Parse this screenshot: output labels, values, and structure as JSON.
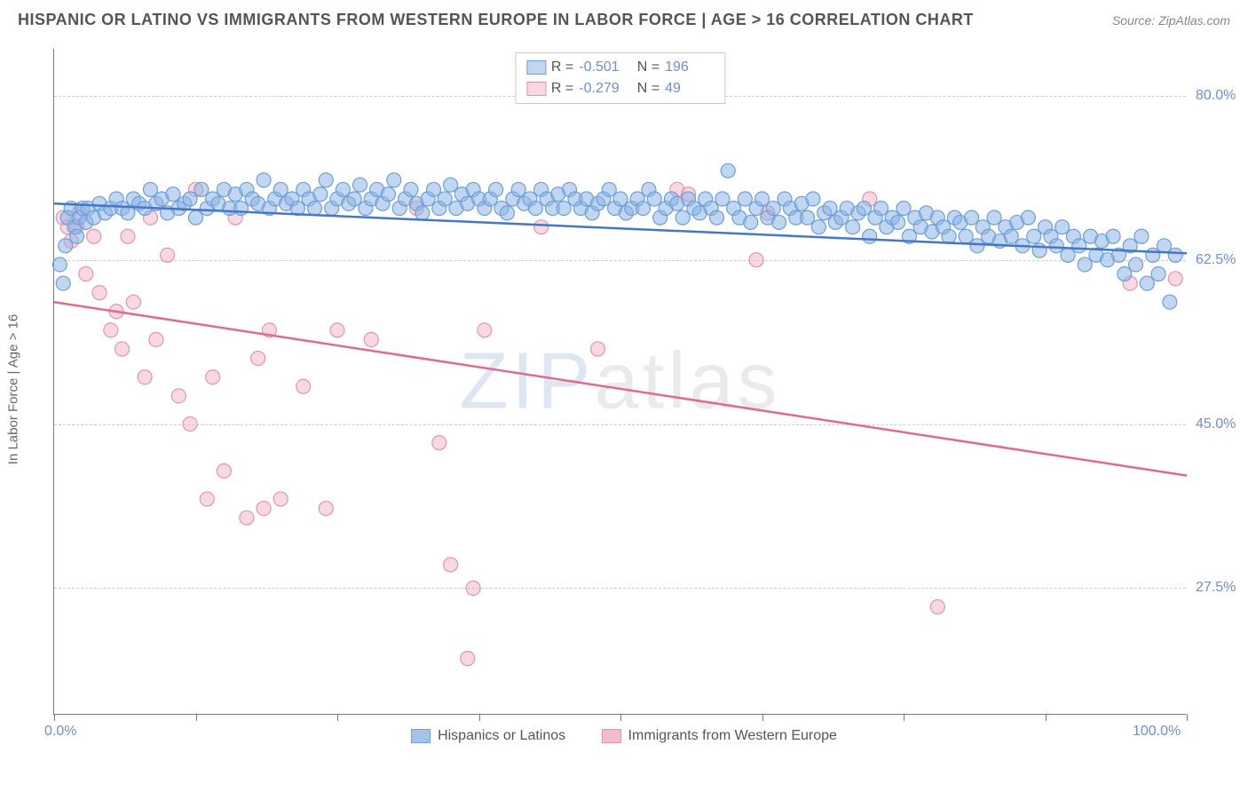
{
  "title": "HISPANIC OR LATINO VS IMMIGRANTS FROM WESTERN EUROPE IN LABOR FORCE | AGE > 16 CORRELATION CHART",
  "source": "Source: ZipAtlas.com",
  "ylabel": "In Labor Force | Age > 16",
  "watermark_front": "ZIP",
  "watermark_rest": "atlas",
  "chart": {
    "type": "scatter",
    "xlim": [
      0,
      100
    ],
    "ylim": [
      14,
      85
    ],
    "x_ticks": [
      0,
      12.5,
      25,
      37.5,
      50,
      62.5,
      75,
      87.5,
      100
    ],
    "x_tick_labels": {
      "0": "0.0%",
      "100": "100.0%"
    },
    "y_ticks": [
      27.5,
      45.0,
      62.5,
      80.0
    ],
    "y_tick_labels": [
      "27.5%",
      "45.0%",
      "62.5%",
      "80.0%"
    ],
    "grid_color": "#cccccc",
    "axis_color": "#777777",
    "background": "#ffffff",
    "marker_radius": 8,
    "marker_stroke_width": 1.2,
    "line_width": 2.5,
    "tick_label_color": "#6b8fd4",
    "title_color": "#555555",
    "title_fontsize": 18,
    "label_fontsize": 15
  },
  "series": [
    {
      "name": "Hispanics or Latinos",
      "fill": "rgba(140,180,230,0.55)",
      "stroke": "#6d9fd8",
      "line_color": "#4577c7",
      "R": "-0.501",
      "N": "196",
      "trend": {
        "x1": 0,
        "y1": 68.5,
        "x2": 100,
        "y2": 63.2
      },
      "points": [
        [
          0.5,
          62
        ],
        [
          0.8,
          60
        ],
        [
          1,
          64
        ],
        [
          1.2,
          67
        ],
        [
          1.5,
          68
        ],
        [
          1.8,
          66
        ],
        [
          2,
          65
        ],
        [
          2.2,
          67
        ],
        [
          2.5,
          68
        ],
        [
          2.8,
          66.5
        ],
        [
          3,
          68
        ],
        [
          3.5,
          67
        ],
        [
          4,
          68.5
        ],
        [
          4.5,
          67.5
        ],
        [
          5,
          68
        ],
        [
          5.5,
          69
        ],
        [
          6,
          68
        ],
        [
          6.5,
          67.5
        ],
        [
          7,
          69
        ],
        [
          7.5,
          68.5
        ],
        [
          8,
          68
        ],
        [
          8.5,
          70
        ],
        [
          9,
          68.5
        ],
        [
          9.5,
          69
        ],
        [
          10,
          67.5
        ],
        [
          10.5,
          69.5
        ],
        [
          11,
          68
        ],
        [
          11.5,
          68.5
        ],
        [
          12,
          69
        ],
        [
          12.5,
          67
        ],
        [
          13,
          70
        ],
        [
          13.5,
          68
        ],
        [
          14,
          69
        ],
        [
          14.5,
          68.5
        ],
        [
          15,
          70
        ],
        [
          15.5,
          68
        ],
        [
          16,
          69.5
        ],
        [
          16.5,
          68
        ],
        [
          17,
          70
        ],
        [
          17.5,
          69
        ],
        [
          18,
          68.5
        ],
        [
          18.5,
          71
        ],
        [
          19,
          68
        ],
        [
          19.5,
          69
        ],
        [
          20,
          70
        ],
        [
          20.5,
          68.5
        ],
        [
          21,
          69
        ],
        [
          21.5,
          68
        ],
        [
          22,
          70
        ],
        [
          22.5,
          69
        ],
        [
          23,
          68
        ],
        [
          23.5,
          69.5
        ],
        [
          24,
          71
        ],
        [
          24.5,
          68
        ],
        [
          25,
          69
        ],
        [
          25.5,
          70
        ],
        [
          26,
          68.5
        ],
        [
          26.5,
          69
        ],
        [
          27,
          70.5
        ],
        [
          27.5,
          68
        ],
        [
          28,
          69
        ],
        [
          28.5,
          70
        ],
        [
          29,
          68.5
        ],
        [
          29.5,
          69.5
        ],
        [
          30,
          71
        ],
        [
          30.5,
          68
        ],
        [
          31,
          69
        ],
        [
          31.5,
          70
        ],
        [
          32,
          68.5
        ],
        [
          32.5,
          67.5
        ],
        [
          33,
          69
        ],
        [
          33.5,
          70
        ],
        [
          34,
          68
        ],
        [
          34.5,
          69
        ],
        [
          35,
          70.5
        ],
        [
          35.5,
          68
        ],
        [
          36,
          69.5
        ],
        [
          36.5,
          68.5
        ],
        [
          37,
          70
        ],
        [
          37.5,
          69
        ],
        [
          38,
          68
        ],
        [
          38.5,
          69
        ],
        [
          39,
          70
        ],
        [
          39.5,
          68
        ],
        [
          40,
          67.5
        ],
        [
          40.5,
          69
        ],
        [
          41,
          70
        ],
        [
          41.5,
          68.5
        ],
        [
          42,
          69
        ],
        [
          42.5,
          68
        ],
        [
          43,
          70
        ],
        [
          43.5,
          69
        ],
        [
          44,
          68
        ],
        [
          44.5,
          69.5
        ],
        [
          45,
          68
        ],
        [
          45.5,
          70
        ],
        [
          46,
          69
        ],
        [
          46.5,
          68
        ],
        [
          47,
          69
        ],
        [
          47.5,
          67.5
        ],
        [
          48,
          68.5
        ],
        [
          48.5,
          69
        ],
        [
          49,
          70
        ],
        [
          49.5,
          68
        ],
        [
          50,
          69
        ],
        [
          50.5,
          67.5
        ],
        [
          51,
          68
        ],
        [
          51.5,
          69
        ],
        [
          52,
          68
        ],
        [
          52.5,
          70
        ],
        [
          53,
          69
        ],
        [
          53.5,
          67
        ],
        [
          54,
          68
        ],
        [
          54.5,
          69
        ],
        [
          55,
          68.5
        ],
        [
          55.5,
          67
        ],
        [
          56,
          69
        ],
        [
          56.5,
          68
        ],
        [
          57,
          67.5
        ],
        [
          57.5,
          69
        ],
        [
          58,
          68
        ],
        [
          58.5,
          67
        ],
        [
          59,
          69
        ],
        [
          59.5,
          72
        ],
        [
          60,
          68
        ],
        [
          60.5,
          67
        ],
        [
          61,
          69
        ],
        [
          61.5,
          66.5
        ],
        [
          62,
          68
        ],
        [
          62.5,
          69
        ],
        [
          63,
          67
        ],
        [
          63.5,
          68
        ],
        [
          64,
          66.5
        ],
        [
          64.5,
          69
        ],
        [
          65,
          68
        ],
        [
          65.5,
          67
        ],
        [
          66,
          68.5
        ],
        [
          66.5,
          67
        ],
        [
          67,
          69
        ],
        [
          67.5,
          66
        ],
        [
          68,
          67.5
        ],
        [
          68.5,
          68
        ],
        [
          69,
          66.5
        ],
        [
          69.5,
          67
        ],
        [
          70,
          68
        ],
        [
          70.5,
          66
        ],
        [
          71,
          67.5
        ],
        [
          71.5,
          68
        ],
        [
          72,
          65
        ],
        [
          72.5,
          67
        ],
        [
          73,
          68
        ],
        [
          73.5,
          66
        ],
        [
          74,
          67
        ],
        [
          74.5,
          66.5
        ],
        [
          75,
          68
        ],
        [
          75.5,
          65
        ],
        [
          76,
          67
        ],
        [
          76.5,
          66
        ],
        [
          77,
          67.5
        ],
        [
          77.5,
          65.5
        ],
        [
          78,
          67
        ],
        [
          78.5,
          66
        ],
        [
          79,
          65
        ],
        [
          79.5,
          67
        ],
        [
          80,
          66.5
        ],
        [
          80.5,
          65
        ],
        [
          81,
          67
        ],
        [
          81.5,
          64
        ],
        [
          82,
          66
        ],
        [
          82.5,
          65
        ],
        [
          83,
          67
        ],
        [
          83.5,
          64.5
        ],
        [
          84,
          66
        ],
        [
          84.5,
          65
        ],
        [
          85,
          66.5
        ],
        [
          85.5,
          64
        ],
        [
          86,
          67
        ],
        [
          86.5,
          65
        ],
        [
          87,
          63.5
        ],
        [
          87.5,
          66
        ],
        [
          88,
          65
        ],
        [
          88.5,
          64
        ],
        [
          89,
          66
        ],
        [
          89.5,
          63
        ],
        [
          90,
          65
        ],
        [
          90.5,
          64
        ],
        [
          91,
          62
        ],
        [
          91.5,
          65
        ],
        [
          92,
          63
        ],
        [
          92.5,
          64.5
        ],
        [
          93,
          62.5
        ],
        [
          93.5,
          65
        ],
        [
          94,
          63
        ],
        [
          94.5,
          61
        ],
        [
          95,
          64
        ],
        [
          95.5,
          62
        ],
        [
          96,
          65
        ],
        [
          96.5,
          60
        ],
        [
          97,
          63
        ],
        [
          97.5,
          61
        ],
        [
          98,
          64
        ],
        [
          98.5,
          58
        ],
        [
          99,
          63
        ]
      ]
    },
    {
      "name": "Immigrants from Western Europe",
      "fill": "rgba(240,170,190,0.45)",
      "stroke": "#e593ab",
      "line_color": "#e06b8b",
      "R": "-0.279",
      "N": "49",
      "trend": {
        "x1": 0,
        "y1": 58,
        "x2": 100,
        "y2": 39.5
      },
      "points": [
        [
          0.8,
          67
        ],
        [
          1.2,
          66
        ],
        [
          1.5,
          64.5
        ],
        [
          2,
          66
        ],
        [
          2.2,
          67.5
        ],
        [
          2.8,
          61
        ],
        [
          3.5,
          65
        ],
        [
          4,
          59
        ],
        [
          5,
          55
        ],
        [
          5.5,
          57
        ],
        [
          6,
          53
        ],
        [
          6.5,
          65
        ],
        [
          7,
          58
        ],
        [
          8,
          50
        ],
        [
          8.5,
          67
        ],
        [
          9,
          54
        ],
        [
          10,
          63
        ],
        [
          11,
          48
        ],
        [
          12,
          45
        ],
        [
          12.5,
          70
        ],
        [
          13.5,
          37
        ],
        [
          14,
          50
        ],
        [
          15,
          40
        ],
        [
          16,
          67
        ],
        [
          17,
          35
        ],
        [
          18,
          52
        ],
        [
          18.5,
          36
        ],
        [
          19,
          55
        ],
        [
          20,
          37
        ],
        [
          22,
          49
        ],
        [
          24,
          36
        ],
        [
          25,
          55
        ],
        [
          28,
          54
        ],
        [
          32,
          68
        ],
        [
          34,
          43
        ],
        [
          35,
          30
        ],
        [
          36.5,
          20
        ],
        [
          37,
          27.5
        ],
        [
          38,
          55
        ],
        [
          43,
          66
        ],
        [
          48,
          53
        ],
        [
          55,
          70
        ],
        [
          56,
          69.5
        ],
        [
          62,
          62.5
        ],
        [
          63,
          67.5
        ],
        [
          72,
          69
        ],
        [
          78,
          25.5
        ],
        [
          95,
          60
        ],
        [
          99,
          60.5
        ]
      ]
    }
  ],
  "legend_bottom": [
    {
      "label": "Hispanics or Latinos",
      "fill": "rgba(140,180,230,0.8)",
      "stroke": "#6d9fd8"
    },
    {
      "label": "Immigrants from Western Europe",
      "fill": "rgba(240,170,190,0.8)",
      "stroke": "#e593ab"
    }
  ]
}
